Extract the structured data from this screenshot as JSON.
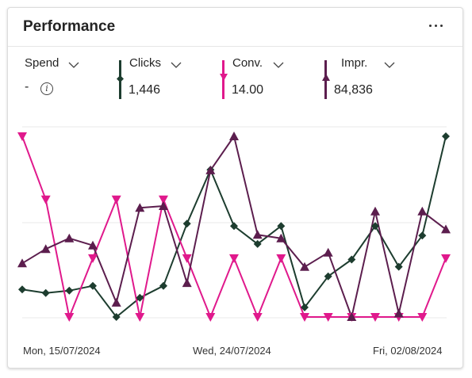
{
  "card": {
    "title": "Performance",
    "more_label": "More options"
  },
  "metrics": [
    {
      "key": "spend",
      "name": "Spend",
      "value": "-",
      "color": "",
      "marker": ""
    },
    {
      "key": "clicks",
      "name": "Clicks",
      "value": "1,446",
      "color": "#1d3d2f",
      "marker": "diamond"
    },
    {
      "key": "conv",
      "name": "Conv.",
      "value": "14.00",
      "color": "#e0198c",
      "marker": "triangle-down"
    },
    {
      "key": "impr",
      "name": "Impr.",
      "value": "84,836",
      "color": "#5c1e4e",
      "marker": "triangle-up"
    }
  ],
  "icons": {
    "info": "info-icon",
    "chevron": "chevron-down-icon",
    "more": "more-horizontal-icon"
  },
  "x_labels": [
    "Mon, 15/07/2024",
    "Wed, 24/07/2024",
    "Fri, 02/08/2024"
  ],
  "chart_data": {
    "type": "line",
    "x": [
      "15/07/2024",
      "16/07/2024",
      "17/07/2024",
      "18/07/2024",
      "19/07/2024",
      "20/07/2024",
      "21/07/2024",
      "22/07/2024",
      "23/07/2024",
      "24/07/2024",
      "25/07/2024",
      "26/07/2024",
      "27/07/2024",
      "28/07/2024",
      "29/07/2024",
      "30/07/2024",
      "31/07/2024",
      "01/08/2024",
      "02/08/2024"
    ],
    "series": [
      {
        "name": "Clicks",
        "color": "#1d3d2f",
        "marker": "diamond",
        "values": [
          65,
          62,
          64,
          68,
          42,
          58,
          68,
          120,
          165,
          118,
          103,
          118,
          50,
          76,
          90,
          118,
          84,
          110,
          193
        ]
      },
      {
        "name": "Conv.",
        "color": "#e0198c",
        "marker": "triangle-down",
        "values": [
          2.0,
          1.3,
          0,
          0.65,
          1.3,
          0,
          1.3,
          0.65,
          0,
          0.65,
          0,
          0.65,
          0,
          0,
          0,
          0,
          0,
          0,
          0.65
        ]
      },
      {
        "name": "Impr.",
        "color": "#5c1e4e",
        "marker": "triangle-up",
        "values": [
          4500,
          4580,
          4640,
          4600,
          4280,
          4810,
          4820,
          4390,
          5020,
          5210,
          4660,
          4640,
          4480,
          4560,
          4200,
          4790,
          4220,
          4790,
          4690
        ]
      }
    ]
  }
}
